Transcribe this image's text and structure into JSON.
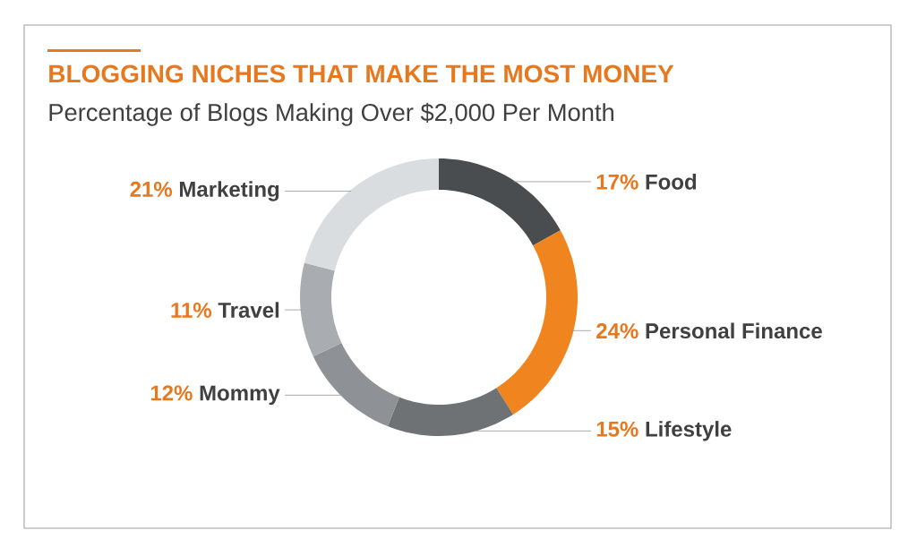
{
  "chart_data": {
    "type": "donut",
    "title": "BLOGGING NICHES THAT MAKE THE MOST MONEY",
    "subtitle": "Percentage of Blogs Making Over $2,000 Per Month",
    "categories": [
      "Food",
      "Personal Finance",
      "Lifestyle",
      "Mommy",
      "Travel",
      "Marketing"
    ],
    "values": [
      17,
      24,
      15,
      12,
      11,
      21
    ],
    "value_labels": [
      "17%",
      "24%",
      "15%",
      "12%",
      "11%",
      "21%"
    ],
    "colors": [
      "#4a4d4f",
      "#f0841e",
      "#6e7275",
      "#8e9296",
      "#a9adb1",
      "#dadde0"
    ]
  }
}
